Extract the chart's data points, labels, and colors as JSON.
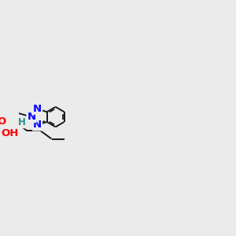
{
  "background_color": "#ebebeb",
  "bond_color": "#1a1a1a",
  "bond_width": 1.4,
  "N_color": "#0000ff",
  "O_color": "#ff0000",
  "H_color": "#2e8b8b",
  "fs": 9.5,
  "xlim": [
    -4.2,
    5.8
  ],
  "ylim": [
    -2.8,
    3.2
  ]
}
